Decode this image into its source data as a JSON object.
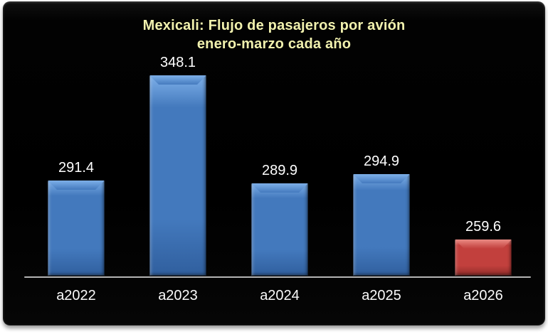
{
  "chart_data": {
    "type": "bar",
    "title_lines": [
      "Mexicali: Flujo de pasajeros por avión",
      "enero-marzo cada año"
    ],
    "title": "Mexicali: Flujo de pasajeros por avión enero-marzo cada año",
    "categories": [
      "a2022",
      "a2023",
      "a2024",
      "a2025",
      "a2026"
    ],
    "values": [
      291.4,
      348.1,
      289.9,
      294.9,
      259.6
    ],
    "data_labels": [
      "291.4",
      "348.1",
      "289.9",
      "294.9",
      "259.6"
    ],
    "bar_colors": [
      "blue",
      "blue",
      "blue",
      "blue",
      "red"
    ],
    "ylim": [
      240,
      360
    ],
    "xlabel": "",
    "ylabel": "",
    "grid": false,
    "legend": "none",
    "y_axis_visible": false
  },
  "style": {
    "page_bg": "#ffffff",
    "panel_bg": "#000000",
    "title_color": "#f1f1ae",
    "data_label_color": "#ffffff",
    "axis_label_color": "#fafafa",
    "axis_line_color": "#cfcfcf",
    "bar_palette": {
      "blue": {
        "body": "#4379bd",
        "light": "#7eb0e9",
        "dark": "#305f9e"
      },
      "red": {
        "body": "#c2403d",
        "light": "#ea8b84",
        "dark": "#8e2b28"
      }
    }
  }
}
